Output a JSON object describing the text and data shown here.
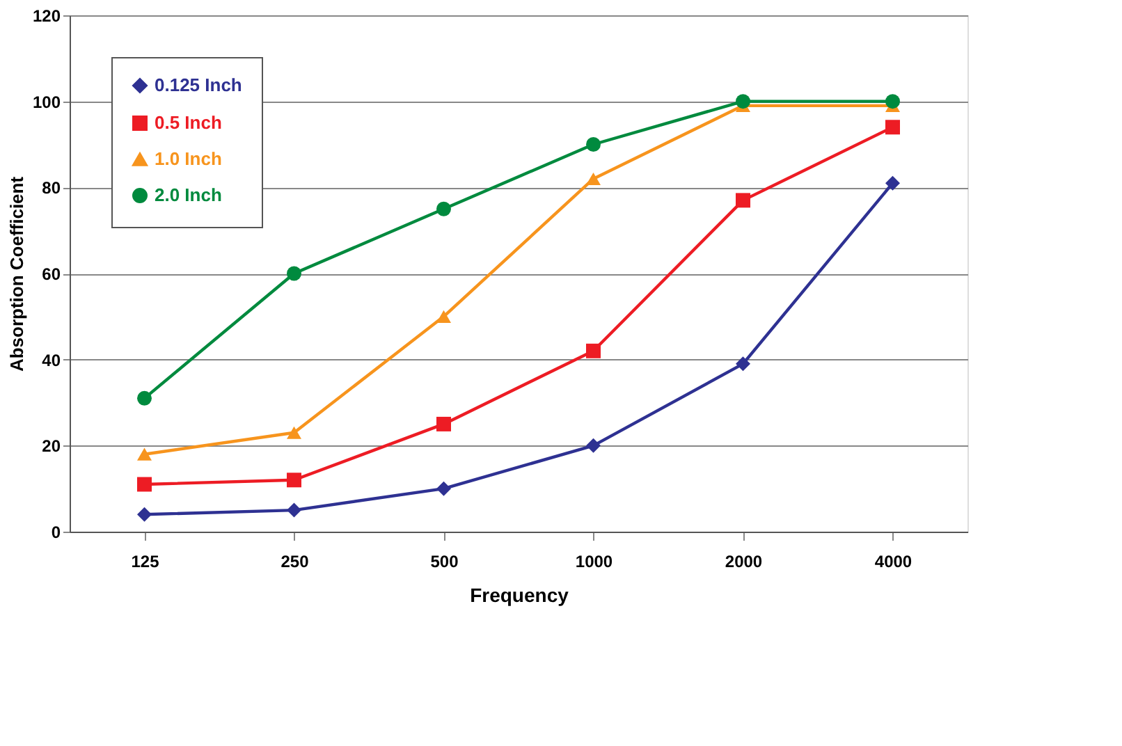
{
  "chart_data": {
    "type": "line",
    "xlabel": "Frequency",
    "ylabel": "Absorption Coefficient",
    "categories": [
      "125",
      "250",
      "500",
      "1000",
      "2000",
      "4000"
    ],
    "series": [
      {
        "name": "0.125 Inch",
        "color": "#2e3192",
        "marker": "diamond",
        "values": [
          4,
          5,
          10,
          20,
          39,
          81
        ]
      },
      {
        "name": "0.5 Inch",
        "color": "#ed1c24",
        "marker": "square",
        "values": [
          11,
          12,
          25,
          42,
          77,
          94
        ]
      },
      {
        "name": "1.0 Inch",
        "color": "#f7941d",
        "marker": "triangle",
        "values": [
          18,
          23,
          50,
          82,
          99,
          99
        ]
      },
      {
        "name": "2.0 Inch",
        "color": "#008a3e",
        "marker": "circle",
        "values": [
          31,
          60,
          75,
          90,
          100,
          100
        ]
      }
    ],
    "ylim": [
      0,
      120
    ],
    "yticks": [
      0,
      20,
      40,
      60,
      80,
      100,
      120
    ],
    "grid": "y",
    "legend": "top left"
  }
}
